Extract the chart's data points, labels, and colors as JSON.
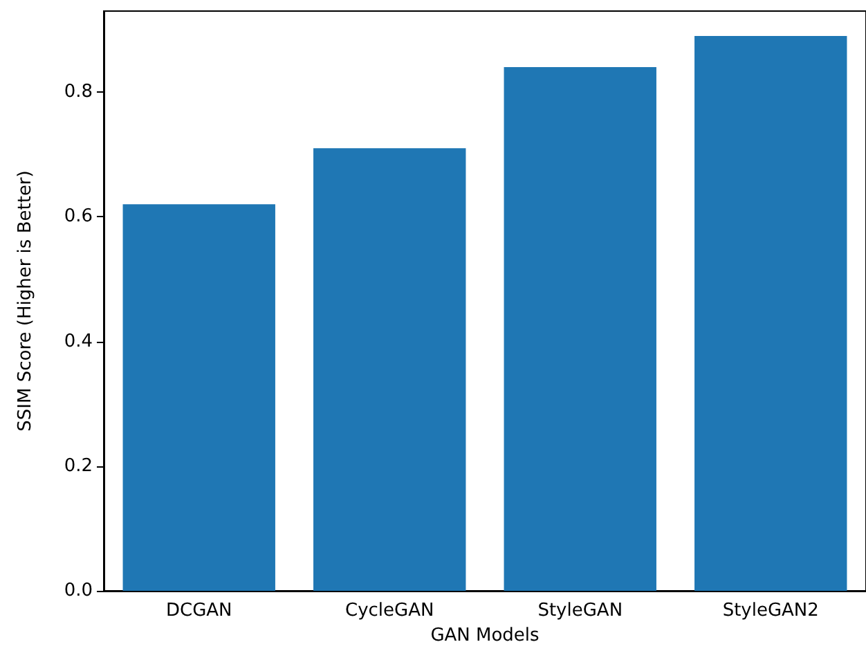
{
  "chart_data": {
    "type": "bar",
    "xlabel": "GAN Models",
    "ylabel": "SSIM Score (Higher is Better)",
    "categories": [
      "DCGAN",
      "CycleGAN",
      "StyleGAN",
      "StyleGAN2"
    ],
    "values": [
      0.62,
      0.71,
      0.84,
      0.89
    ],
    "color": "#1f77b4",
    "ylim": [
      0,
      0.93
    ],
    "yticks": [
      {
        "value": 0,
        "label": "0.0"
      },
      {
        "value": 0.2,
        "label": "0.2"
      },
      {
        "value": 0.4,
        "label": "0.4"
      },
      {
        "value": 0.6,
        "label": "0.6"
      },
      {
        "value": 0.8,
        "label": "0.8"
      }
    ],
    "grid": false
  }
}
